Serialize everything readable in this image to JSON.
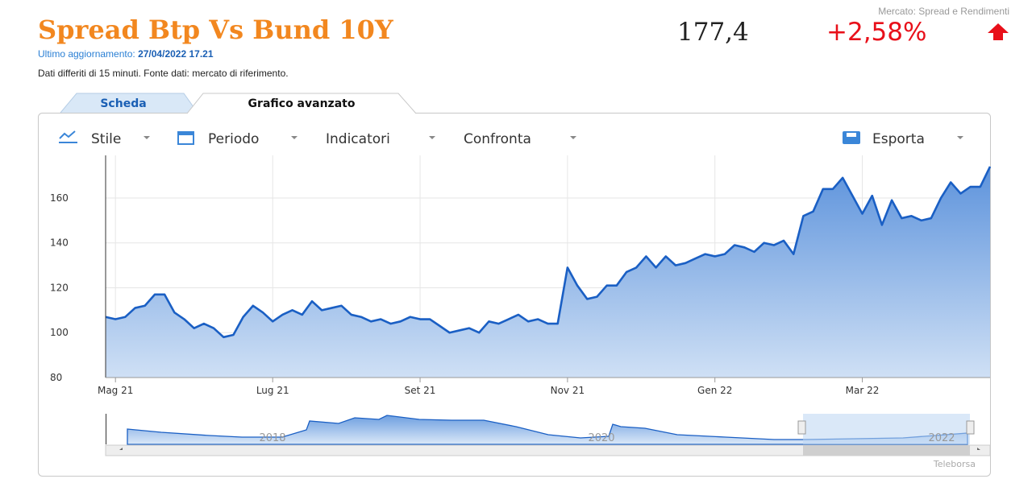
{
  "header": {
    "title": "Spread Btp Vs Bund 10Y",
    "update_label": "Ultimo aggiornamento:",
    "update_time": "27/04/2022 17.21",
    "delay_note": "Dati differiti di 15 minuti.  Fonte dati: mercato di riferimento.",
    "market": "Mercato: Spread e Rendimenti",
    "price": "177,4",
    "change": "+2,58%"
  },
  "tabs": [
    "Scheda",
    "Grafico avanzato"
  ],
  "toolbar": [
    "Stile",
    "Periodo",
    "Indicatori",
    "Confronta",
    "Esporta"
  ],
  "chart_data": {
    "type": "area",
    "categories": [
      null,
      "Mag 21",
      null,
      null,
      null,
      null,
      null,
      null,
      null,
      null,
      null,
      null,
      null,
      null,
      null,
      null,
      null,
      "Lug 21",
      null,
      null,
      null,
      null,
      null,
      null,
      null,
      null,
      null,
      null,
      null,
      null,
      null,
      null,
      "Set 21",
      null,
      null,
      null,
      null,
      null,
      null,
      null,
      null,
      null,
      null,
      null,
      null,
      null,
      null,
      "Nov 21",
      null,
      null,
      null,
      null,
      null,
      null,
      null,
      null,
      null,
      null,
      null,
      null,
      null,
      null,
      "Gen 22",
      null,
      null,
      null,
      null,
      null,
      null,
      null,
      null,
      null,
      null,
      null,
      null,
      null,
      null,
      "Mar 22",
      null,
      null,
      null,
      null,
      null,
      null,
      null,
      null,
      null,
      null,
      null,
      null,
      null
    ],
    "values": [
      107,
      106,
      107,
      111,
      112,
      117,
      117,
      109,
      106,
      102,
      104,
      102,
      98,
      99,
      107,
      112,
      109,
      105,
      108,
      110,
      108,
      114,
      110,
      111,
      112,
      108,
      107,
      105,
      106,
      104,
      105,
      107,
      106,
      106,
      103,
      100,
      101,
      102,
      100,
      105,
      104,
      106,
      108,
      105,
      106,
      104,
      104,
      129,
      121,
      115,
      116,
      121,
      121,
      127,
      129,
      134,
      129,
      134,
      130,
      131,
      133,
      135,
      134,
      135,
      139,
      138,
      136,
      140,
      139,
      141,
      135,
      152,
      154,
      164,
      164,
      169,
      161,
      153,
      161,
      148,
      159,
      151,
      152,
      150,
      151,
      160,
      167,
      162,
      165,
      165,
      174
    ],
    "color": "#1a5fc4",
    "ylim": [
      80,
      179
    ],
    "yticks": [
      80,
      100,
      120,
      140,
      160
    ],
    "grid": true
  },
  "navigator": {
    "labels": [
      "2018",
      "2020",
      "2022"
    ]
  },
  "credit": "Teleborsa"
}
